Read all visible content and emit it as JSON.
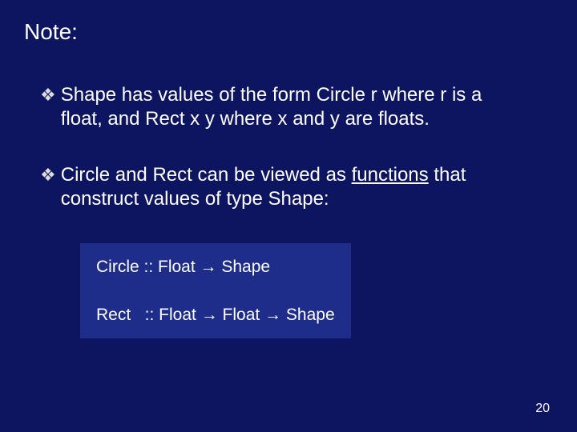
{
  "slide": {
    "background_color": "#0e1560",
    "text_color": "#ffffff",
    "title": "Note:",
    "title_fontsize": 28,
    "bullets": [
      {
        "marker": "❖",
        "segments": [
          {
            "text": "Shape has values of the form Circle r where r is a float, and Rect x y where x and y are floats.",
            "underline": false
          }
        ]
      },
      {
        "marker": "❖",
        "segments": [
          {
            "text": "Circle and Rect can be viewed as ",
            "underline": false
          },
          {
            "text": "functions",
            "underline": true
          },
          {
            "text": " that construct values of type Shape:",
            "underline": false
          }
        ]
      }
    ],
    "bullet_fontsize": 24,
    "code_block": {
      "background_color": "#1f2d8a",
      "fontsize": 21,
      "arrow": "→",
      "lines": [
        "Circle :: Float → Shape",
        "",
        "Rect   :: Float → Float → Shape"
      ]
    },
    "page_number": "20",
    "page_number_fontsize": 16
  }
}
